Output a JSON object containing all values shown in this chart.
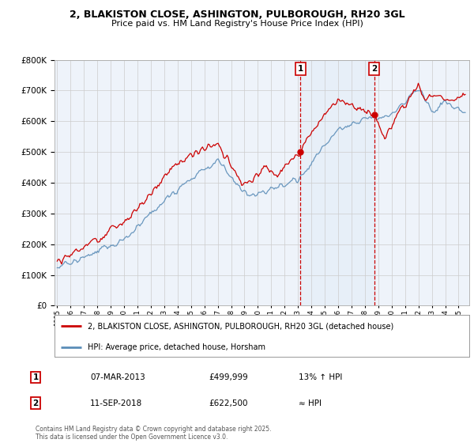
{
  "title_line1": "2, BLAKISTON CLOSE, ASHINGTON, PULBOROUGH, RH20 3GL",
  "title_line2": "Price paid vs. HM Land Registry's House Price Index (HPI)",
  "red_line_label": "2, BLAKISTON CLOSE, ASHINGTON, PULBOROUGH, RH20 3GL (detached house)",
  "blue_line_label": "HPI: Average price, detached house, Horsham",
  "sale1_date": "07-MAR-2013",
  "sale1_price": "£499,999",
  "sale1_hpi": "13% ↑ HPI",
  "sale2_date": "11-SEP-2018",
  "sale2_price": "£622,500",
  "sale2_hpi": "≈ HPI",
  "footer": "Contains HM Land Registry data © Crown copyright and database right 2025.\nThis data is licensed under the Open Government Licence v3.0.",
  "ylim_max": 800000,
  "ylim_min": 0,
  "sale1_year": 2013.18,
  "sale2_year": 2018.69,
  "red_color": "#cc0000",
  "blue_color": "#5b8db8",
  "shade_color": "#dce8f5",
  "vline_color": "#cc0000",
  "grid_color": "#cccccc",
  "plot_bg_color": "#eef3fa",
  "marker1_price": 499999,
  "marker2_price": 622500
}
